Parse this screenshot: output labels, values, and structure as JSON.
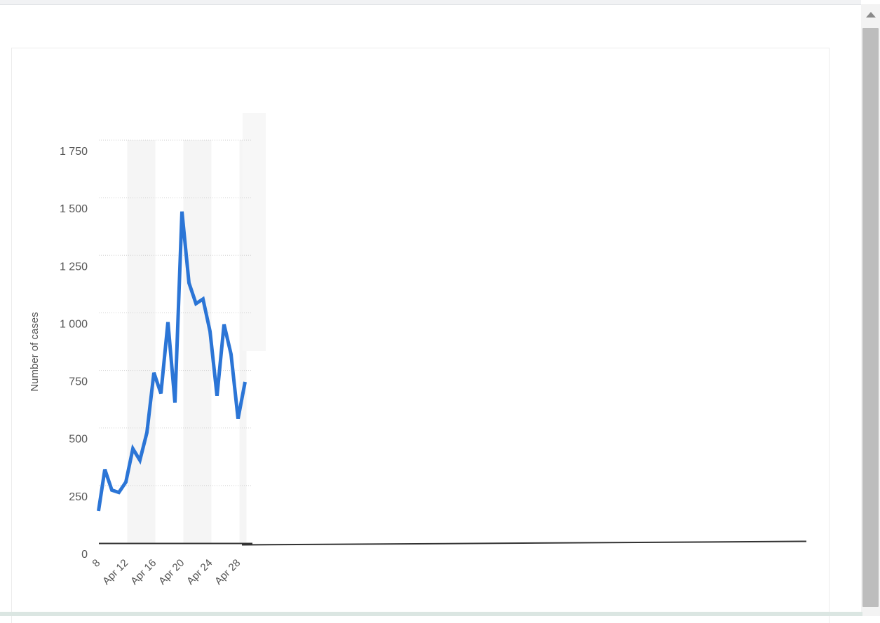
{
  "chart_data": {
    "type": "line",
    "ylabel": "Number of cases",
    "ylim": [
      0,
      1750
    ],
    "ytick_values": [
      0,
      250,
      500,
      750,
      1000,
      1250,
      1500,
      1750
    ],
    "ytick_labels": [
      "0",
      "250",
      "500",
      "750",
      "1 000",
      "1 250",
      "1 500",
      "1 750"
    ],
    "xticks": [
      {
        "label": "Apr 8",
        "shown": "8",
        "day": 8
      },
      {
        "label": "Apr 12",
        "shown": "Apr 12",
        "day": 12
      },
      {
        "label": "Apr 16",
        "shown": "Apr 16",
        "day": 16
      },
      {
        "label": "Apr 20",
        "shown": "Apr 20",
        "day": 20
      },
      {
        "label": "Apr 24",
        "shown": "Apr 24",
        "day": 24
      },
      {
        "label": "Apr 28",
        "shown": "Apr 28",
        "day": 28
      }
    ],
    "x": [
      "Apr 8",
      "Apr 9",
      "Apr 10",
      "Apr 11",
      "Apr 12",
      "Apr 13",
      "Apr 14",
      "Apr 15",
      "Apr 16",
      "Apr 17",
      "Apr 18",
      "Apr 19",
      "Apr 20",
      "Apr 21",
      "Apr 22",
      "Apr 23",
      "Apr 24",
      "Apr 25",
      "Apr 26",
      "Apr 27",
      "Apr 28",
      "Apr 29"
    ],
    "series": [
      {
        "values": [
          140,
          320,
          230,
          220,
          265,
          410,
          360,
          480,
          740,
          650,
          960,
          610,
          1440,
          1130,
          1040,
          1060,
          920,
          640,
          950,
          820,
          540,
          700
        ]
      }
    ],
    "line_color": "#2b75d6",
    "grid": true
  }
}
